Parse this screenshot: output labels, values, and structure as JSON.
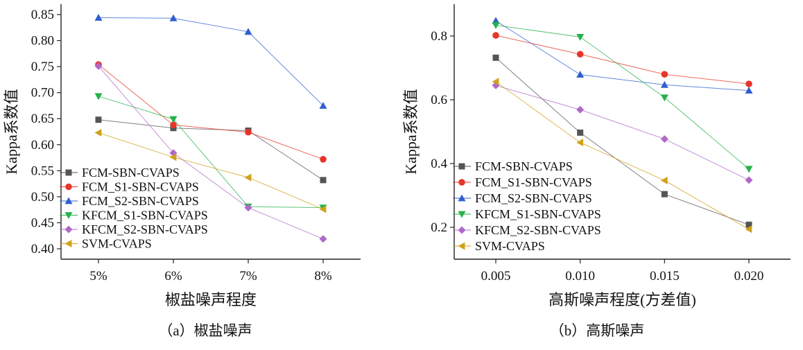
{
  "colors": {
    "FCM-SBN-CVAPS": "#555555",
    "FCM_S1-SBN-CVAPS": "#e8352a",
    "FCM_S2-SBN-CVAPS": "#2f5fd0",
    "KFCM_S1-SBN-CVAPS": "#26b24a",
    "KFCM_S2-SBN-CVAPS": "#b069c8",
    "SVM-CVAPS": "#d0a21c"
  },
  "chart_data": [
    {
      "type": "line",
      "caption": "（a）椒盐噪声",
      "xlabel": "椒盐噪声程度",
      "ylabel": "Kappa系数值",
      "categories": [
        "5%",
        "6%",
        "7%",
        "8%"
      ],
      "ylim": [
        0.38,
        0.87
      ],
      "yticks": [
        0.4,
        0.45,
        0.5,
        0.55,
        0.6,
        0.65,
        0.7,
        0.75,
        0.8,
        0.85
      ],
      "ytick_labels": [
        "0.40",
        "0.45",
        "0.50",
        "0.55",
        "0.60",
        "0.65",
        "0.70",
        "0.75",
        "0.80",
        "0.85"
      ],
      "grid": false,
      "legend_position": "bottom-left",
      "series": [
        {
          "name": "FCM-SBN-CVAPS",
          "marker": "square",
          "values": [
            0.648,
            0.632,
            0.627,
            0.532
          ]
        },
        {
          "name": "FCM_S1-SBN-CVAPS",
          "marker": "circle",
          "values": [
            0.754,
            0.638,
            0.624,
            0.572
          ]
        },
        {
          "name": "FCM_S2-SBN-CVAPS",
          "marker": "triangle-up",
          "values": [
            0.844,
            0.843,
            0.817,
            0.675
          ]
        },
        {
          "name": "KFCM_S1-SBN-CVAPS",
          "marker": "triangle-down",
          "values": [
            0.693,
            0.649,
            0.481,
            0.479
          ]
        },
        {
          "name": "KFCM_S2-SBN-CVAPS",
          "marker": "diamond",
          "values": [
            0.751,
            0.584,
            0.479,
            0.419
          ]
        },
        {
          "name": "SVM-CVAPS",
          "marker": "triangle-left",
          "values": [
            0.623,
            0.576,
            0.537,
            0.476
          ]
        }
      ]
    },
    {
      "type": "line",
      "caption": "（b）高斯噪声",
      "xlabel": "高斯噪声程度(方差值)",
      "ylabel": "Kappa系数值",
      "categories": [
        "0.005",
        "0.010",
        "0.015",
        "0.020"
      ],
      "ylim": [
        0.1,
        0.9
      ],
      "yticks": [
        0.2,
        0.4,
        0.6,
        0.8
      ],
      "ytick_labels": [
        "0.2",
        "0.4",
        "0.6",
        "0.8"
      ],
      "grid": false,
      "legend_position": "bottom-left",
      "series": [
        {
          "name": "FCM-SBN-CVAPS",
          "marker": "square",
          "values": [
            0.732,
            0.497,
            0.304,
            0.208
          ]
        },
        {
          "name": "FCM_S1-SBN-CVAPS",
          "marker": "circle",
          "values": [
            0.802,
            0.743,
            0.68,
            0.65
          ]
        },
        {
          "name": "FCM_S2-SBN-CVAPS",
          "marker": "triangle-up",
          "values": [
            0.848,
            0.679,
            0.647,
            0.629
          ]
        },
        {
          "name": "KFCM_S1-SBN-CVAPS",
          "marker": "triangle-down",
          "values": [
            0.834,
            0.797,
            0.607,
            0.383
          ]
        },
        {
          "name": "KFCM_S2-SBN-CVAPS",
          "marker": "diamond",
          "values": [
            0.645,
            0.569,
            0.477,
            0.348
          ]
        },
        {
          "name": "SVM-CVAPS",
          "marker": "triangle-left",
          "values": [
            0.657,
            0.466,
            0.347,
            0.194
          ]
        }
      ]
    }
  ]
}
